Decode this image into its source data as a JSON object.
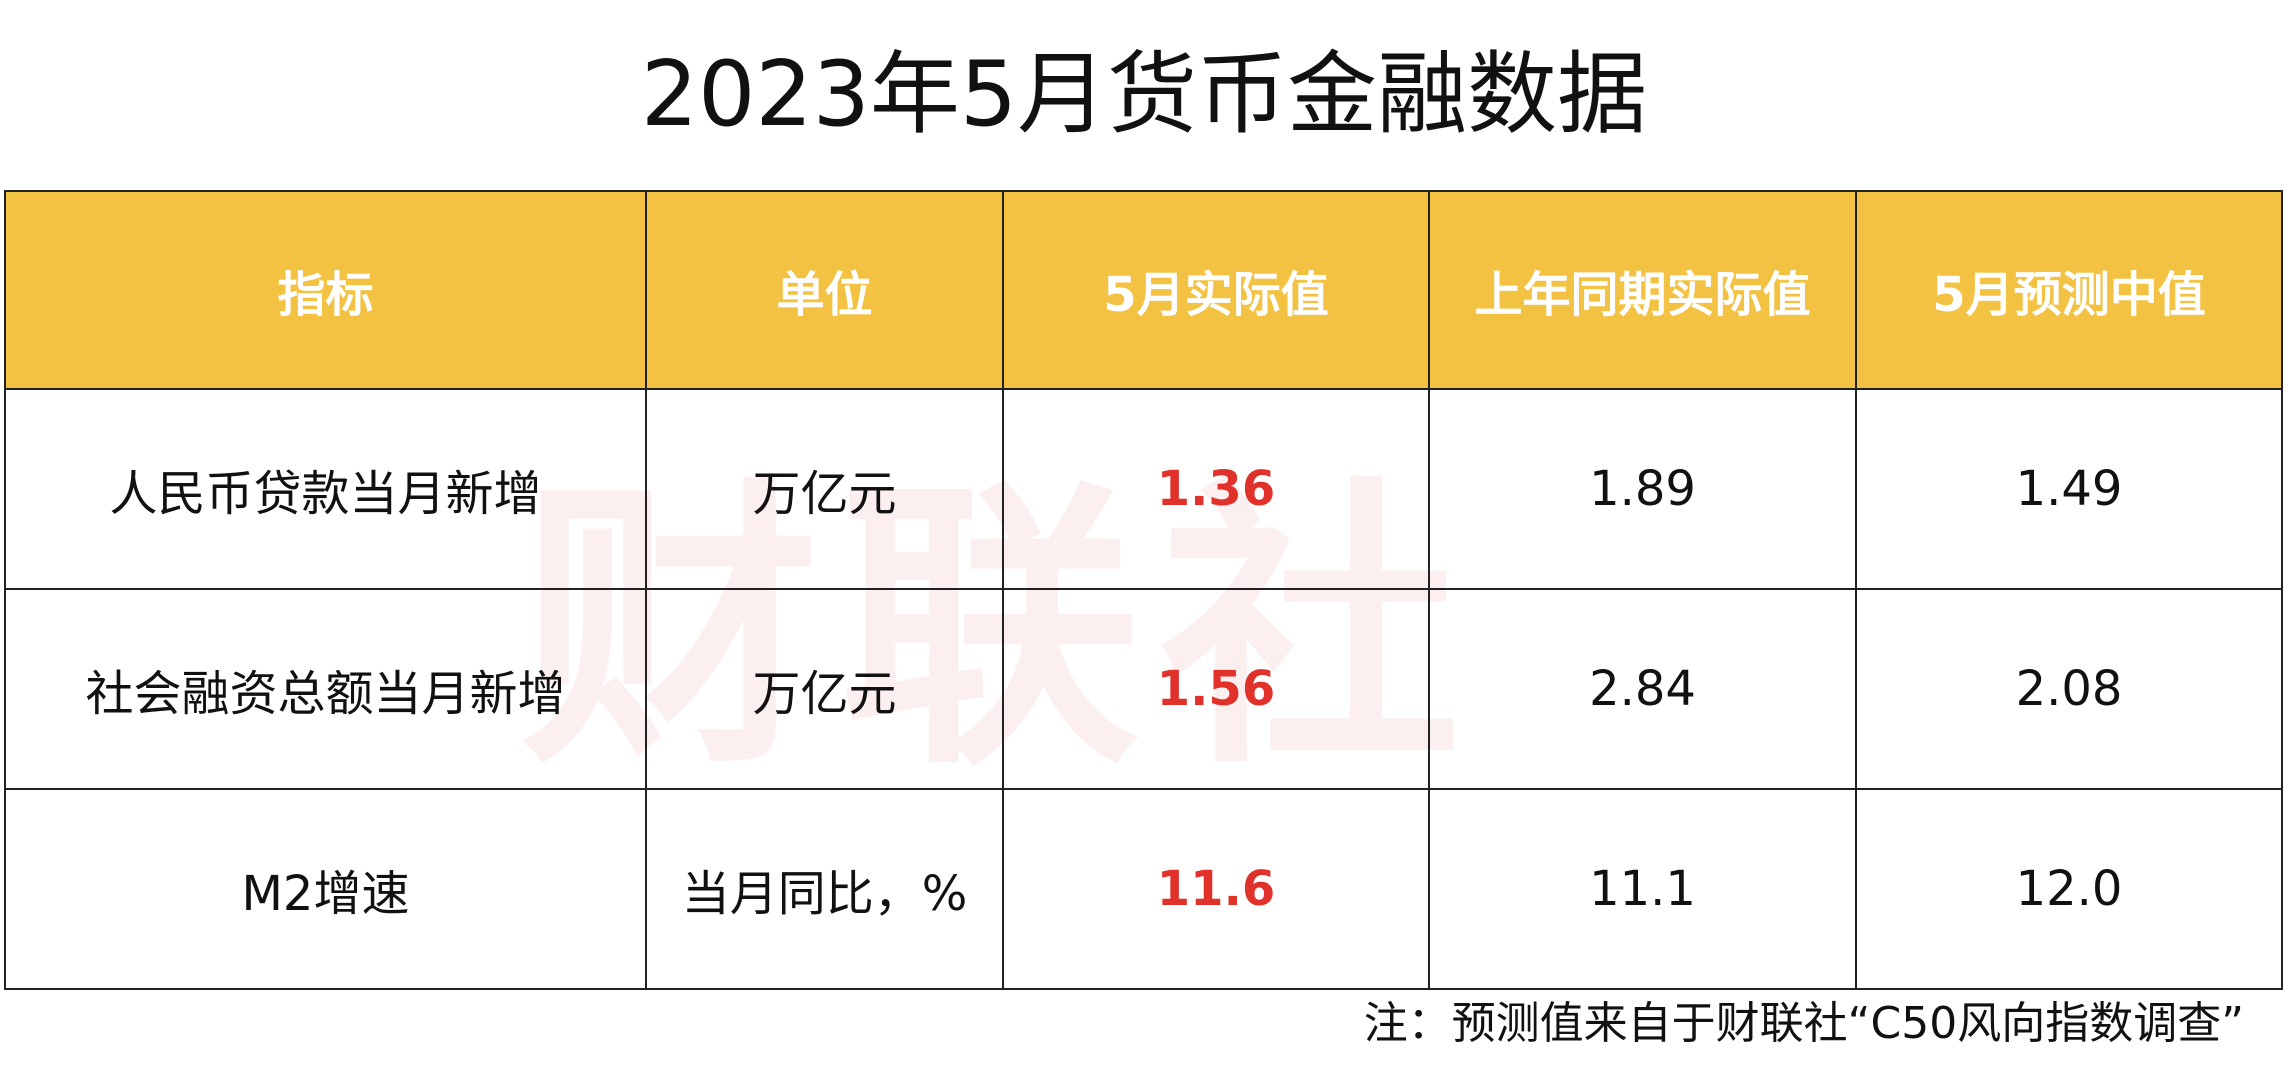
{
  "title": "2023年5月货币金融数据",
  "table": {
    "header": [
      "指标",
      "单位",
      "5月实际值",
      "上年同期实际值",
      "5月预测中值"
    ],
    "rows": [
      [
        "人民币贷款当月新增",
        "万亿元",
        "1.36",
        "1.89",
        "1.49"
      ],
      [
        "社会融资总额当月新增",
        "万亿元",
        "1.56",
        "2.84",
        "2.08"
      ],
      [
        "M2增速",
        "当月同比，%",
        "11.6",
        "11.1",
        "12.0"
      ]
    ]
  },
  "watermark": "财联社",
  "note": "注：预测值来自于财联社“C50风向指数调查”"
}
